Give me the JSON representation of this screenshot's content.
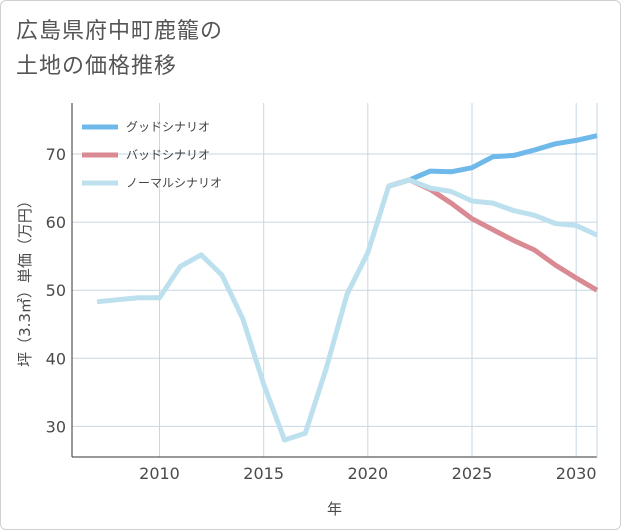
{
  "title": {
    "line1": "広島県府中町鹿籠の",
    "line2": "土地の価格推移"
  },
  "colors": {
    "good": "#6fb8ea",
    "bad": "#d98a92",
    "normal": "#bde0ee",
    "grid": "#c7d7e4",
    "frame": "#d0d0d0"
  },
  "chart_data": {
    "type": "line",
    "title": "広島県府中町鹿籠の土地の価格推移",
    "xlabel": "年",
    "ylabel": "坪（3.3㎡）単価（万円）",
    "xlim": [
      2005.8,
      2031
    ],
    "ylim": [
      25.5,
      77.5
    ],
    "x_ticks": [
      2010,
      2015,
      2020,
      2025,
      2030
    ],
    "y_ticks": [
      30,
      40,
      50,
      60,
      70
    ],
    "legend_position": "top-left",
    "grid": true,
    "series": [
      {
        "key": "good",
        "name": "グッドシナリオ",
        "x": [
          2021,
          2022,
          2023,
          2024,
          2025,
          2026,
          2027,
          2028,
          2029,
          2030,
          2031
        ],
        "values": [
          65.3,
          66.2,
          67.5,
          67.4,
          68.0,
          69.6,
          69.8,
          70.6,
          71.5,
          72.0,
          72.7
        ]
      },
      {
        "key": "bad",
        "name": "バッドシナリオ",
        "x": [
          2021,
          2022,
          2023,
          2024,
          2025,
          2026,
          2027,
          2028,
          2029,
          2030,
          2031
        ],
        "values": [
          65.3,
          66.2,
          64.8,
          62.8,
          60.5,
          58.9,
          57.3,
          55.9,
          53.7,
          51.8,
          50.0
        ]
      },
      {
        "key": "normal",
        "name": "ノーマルシナリオ",
        "x": [
          2007,
          2008,
          2009,
          2010,
          2011,
          2012,
          2013,
          2014,
          2015,
          2016,
          2017,
          2018,
          2019,
          2020,
          2021,
          2022,
          2023,
          2024,
          2025,
          2026,
          2027,
          2028,
          2029,
          2030,
          2031
        ],
        "values": [
          48.3,
          48.6,
          48.9,
          48.9,
          53.5,
          55.2,
          52.2,
          45.8,
          36.2,
          28.0,
          29.0,
          38.5,
          49.4,
          55.5,
          65.3,
          66.2,
          65.0,
          64.5,
          63.1,
          62.8,
          61.7,
          61.0,
          59.8,
          59.5,
          58.1
        ]
      }
    ]
  }
}
